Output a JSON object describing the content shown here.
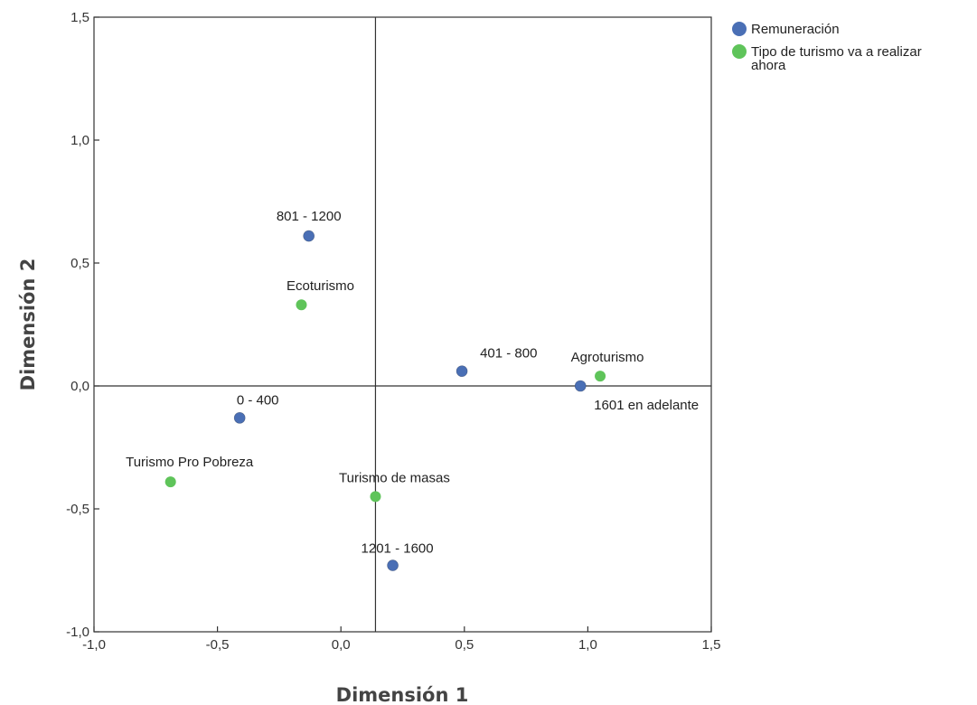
{
  "chart_data": {
    "type": "scatter",
    "title": "",
    "xlabel": "Dimensión 1",
    "ylabel": "Dimensión 2",
    "xlim": [
      -1.0,
      1.5
    ],
    "ylim": [
      -1.0,
      1.5
    ],
    "x_ticks": [
      "-1,0",
      "-0,5",
      "0,0",
      "0,5",
      "1,0",
      "1,5"
    ],
    "y_ticks": [
      "-1,0",
      "-0,5",
      "0,0",
      "0,5",
      "1,0",
      "1,5"
    ],
    "reference_lines": {
      "x": 0.14,
      "y": 0.0
    },
    "grid": false,
    "legend_position": "top-right",
    "series": [
      {
        "name": "Remuneración",
        "color": "#4a6fb5",
        "points": [
          {
            "label": "801 - 1200",
            "x": -0.13,
            "y": 0.61
          },
          {
            "label": "401 - 800",
            "x": 0.49,
            "y": 0.06
          },
          {
            "label": "1601 en adelante",
            "x": 0.97,
            "y": 0.0
          },
          {
            "label": "0 - 400",
            "x": -0.41,
            "y": -0.13
          },
          {
            "label": "1201 - 1600",
            "x": 0.21,
            "y": -0.73
          }
        ]
      },
      {
        "name": "Tipo de turismo va a realizar ahora",
        "name_lines": [
          "Tipo de turismo va a realizar",
          "ahora"
        ],
        "color": "#5fc45a",
        "points": [
          {
            "label": "Ecoturismo",
            "x": -0.16,
            "y": 0.33
          },
          {
            "label": "Agroturismo",
            "x": 1.05,
            "y": 0.04
          },
          {
            "label": "Turismo Pro Pobreza",
            "x": -0.69,
            "y": -0.39
          },
          {
            "label": "Turismo de masas",
            "x": 0.14,
            "y": -0.45
          }
        ]
      }
    ]
  }
}
